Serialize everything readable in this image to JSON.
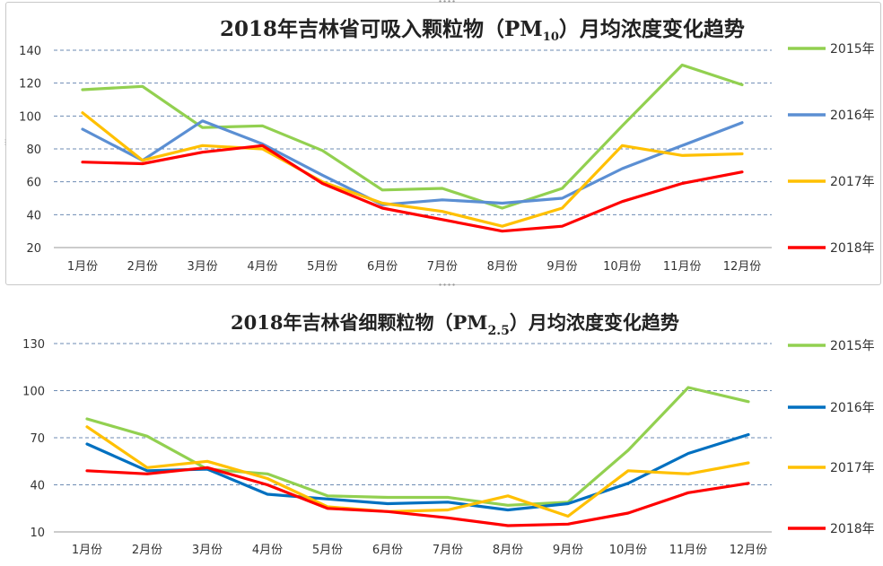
{
  "chart_data": [
    {
      "type": "line",
      "title": "2018年吉林省可吸入颗粒物（PM",
      "title_sub": "10",
      "title_suffix": "）月均浓度变化趋势",
      "categories": [
        "1月份",
        "2月份",
        "3月份",
        "4月份",
        "5月份",
        "6月份",
        "7月份",
        "8月份",
        "9月份",
        "10月份",
        "11月份",
        "12月份"
      ],
      "ylim": [
        20,
        140
      ],
      "yticks": [
        20,
        40,
        60,
        80,
        100,
        120,
        140
      ],
      "grid": true,
      "legend_position": "right",
      "series": [
        {
          "name": "2015年",
          "color": "#92d050",
          "values": [
            116,
            118,
            93,
            94,
            79,
            55,
            56,
            44,
            56,
            94,
            131,
            119
          ]
        },
        {
          "name": "2016年",
          "color": "#5b8fd3",
          "values": [
            92,
            73,
            97,
            83,
            64,
            46,
            49,
            47,
            50,
            68,
            82,
            96
          ]
        },
        {
          "name": "2017年",
          "color": "#ffc000",
          "values": [
            102,
            73,
            82,
            80,
            60,
            47,
            42,
            33,
            44,
            82,
            76,
            77
          ]
        },
        {
          "name": "2018年",
          "color": "#ff0000",
          "values": [
            72,
            71,
            78,
            82,
            59,
            44,
            37,
            30,
            33,
            48,
            59,
            66
          ]
        }
      ]
    },
    {
      "type": "line",
      "title": "2018年吉林省细颗粒物（PM",
      "title_sub": "2.5",
      "title_suffix": "）月均浓度变化趋势",
      "categories": [
        "1月份",
        "2月份",
        "3月份",
        "4月份",
        "5月份",
        "6月份",
        "7月份",
        "8月份",
        "9月份",
        "10月份",
        "11月份",
        "12月份"
      ],
      "ylim": [
        10,
        130
      ],
      "yticks": [
        10,
        40,
        70,
        100,
        130
      ],
      "grid": true,
      "legend_position": "right",
      "series": [
        {
          "name": "2015年",
          "color": "#92d050",
          "values": [
            82,
            71,
            50,
            47,
            33,
            32,
            32,
            27,
            29,
            62,
            102,
            93
          ]
        },
        {
          "name": "2016年",
          "color": "#0070c0",
          "values": [
            66,
            49,
            50,
            34,
            31,
            28,
            29,
            24,
            28,
            41,
            60,
            72
          ]
        },
        {
          "name": "2017年",
          "color": "#ffc000",
          "values": [
            77,
            51,
            55,
            44,
            26,
            23,
            24,
            33,
            20,
            49,
            47,
            54
          ]
        },
        {
          "name": "2018年",
          "color": "#ff0000",
          "values": [
            49,
            47,
            51,
            40,
            25,
            23,
            19,
            14,
            15,
            22,
            35,
            41
          ]
        }
      ]
    }
  ]
}
